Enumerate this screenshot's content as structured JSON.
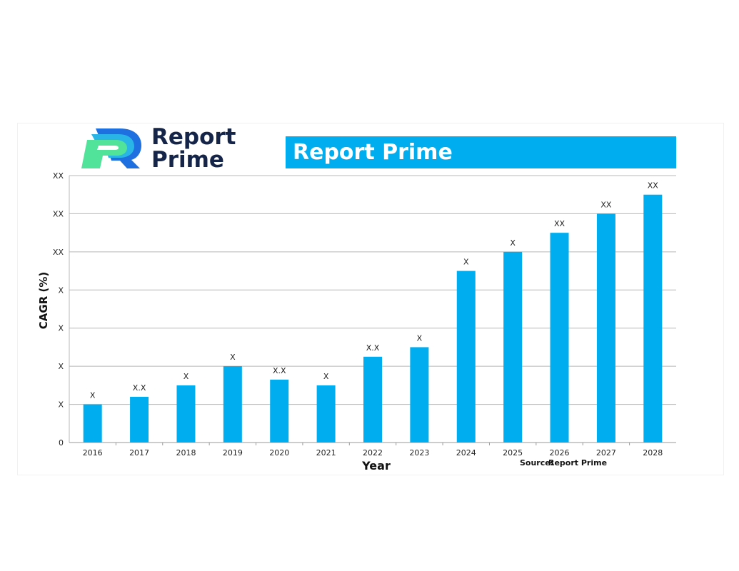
{
  "brand": {
    "name_line1": "Report",
    "name_line2": "Prime",
    "colors": {
      "dark": "#15254a",
      "blue": "#1e6fe0",
      "cyan": "#29b6e6",
      "green": "#52e39a"
    }
  },
  "banner": {
    "title": "Report Prime",
    "color": "#00aeef"
  },
  "chart_data": {
    "type": "bar",
    "categories": [
      "2016",
      "2017",
      "2018",
      "2019",
      "2020",
      "2021",
      "2022",
      "2023",
      "2024",
      "2025",
      "2026",
      "2027",
      "2028"
    ],
    "values": [
      1,
      1.2,
      1.5,
      2,
      1.65,
      1.5,
      2.25,
      2.5,
      4.5,
      5,
      5.5,
      6,
      6.5
    ],
    "data_labels": [
      "X",
      "X.X",
      "X",
      "X",
      "X.X",
      "X",
      "X.X",
      "X",
      "X",
      "X",
      "XX",
      "XX",
      "XX"
    ],
    "ylim": [
      0,
      7
    ],
    "y_ticks": [
      0,
      1,
      2,
      3,
      4,
      5,
      6,
      7
    ],
    "y_tick_labels": [
      "0",
      "X",
      "X",
      "X",
      "X",
      "XX",
      "XX",
      "XX"
    ],
    "xlabel": "Year",
    "ylabel": "CAGR (%)",
    "bar_color": "#00aeef",
    "grid": true,
    "source_label": "Source:",
    "source_text": "Report Prime"
  }
}
